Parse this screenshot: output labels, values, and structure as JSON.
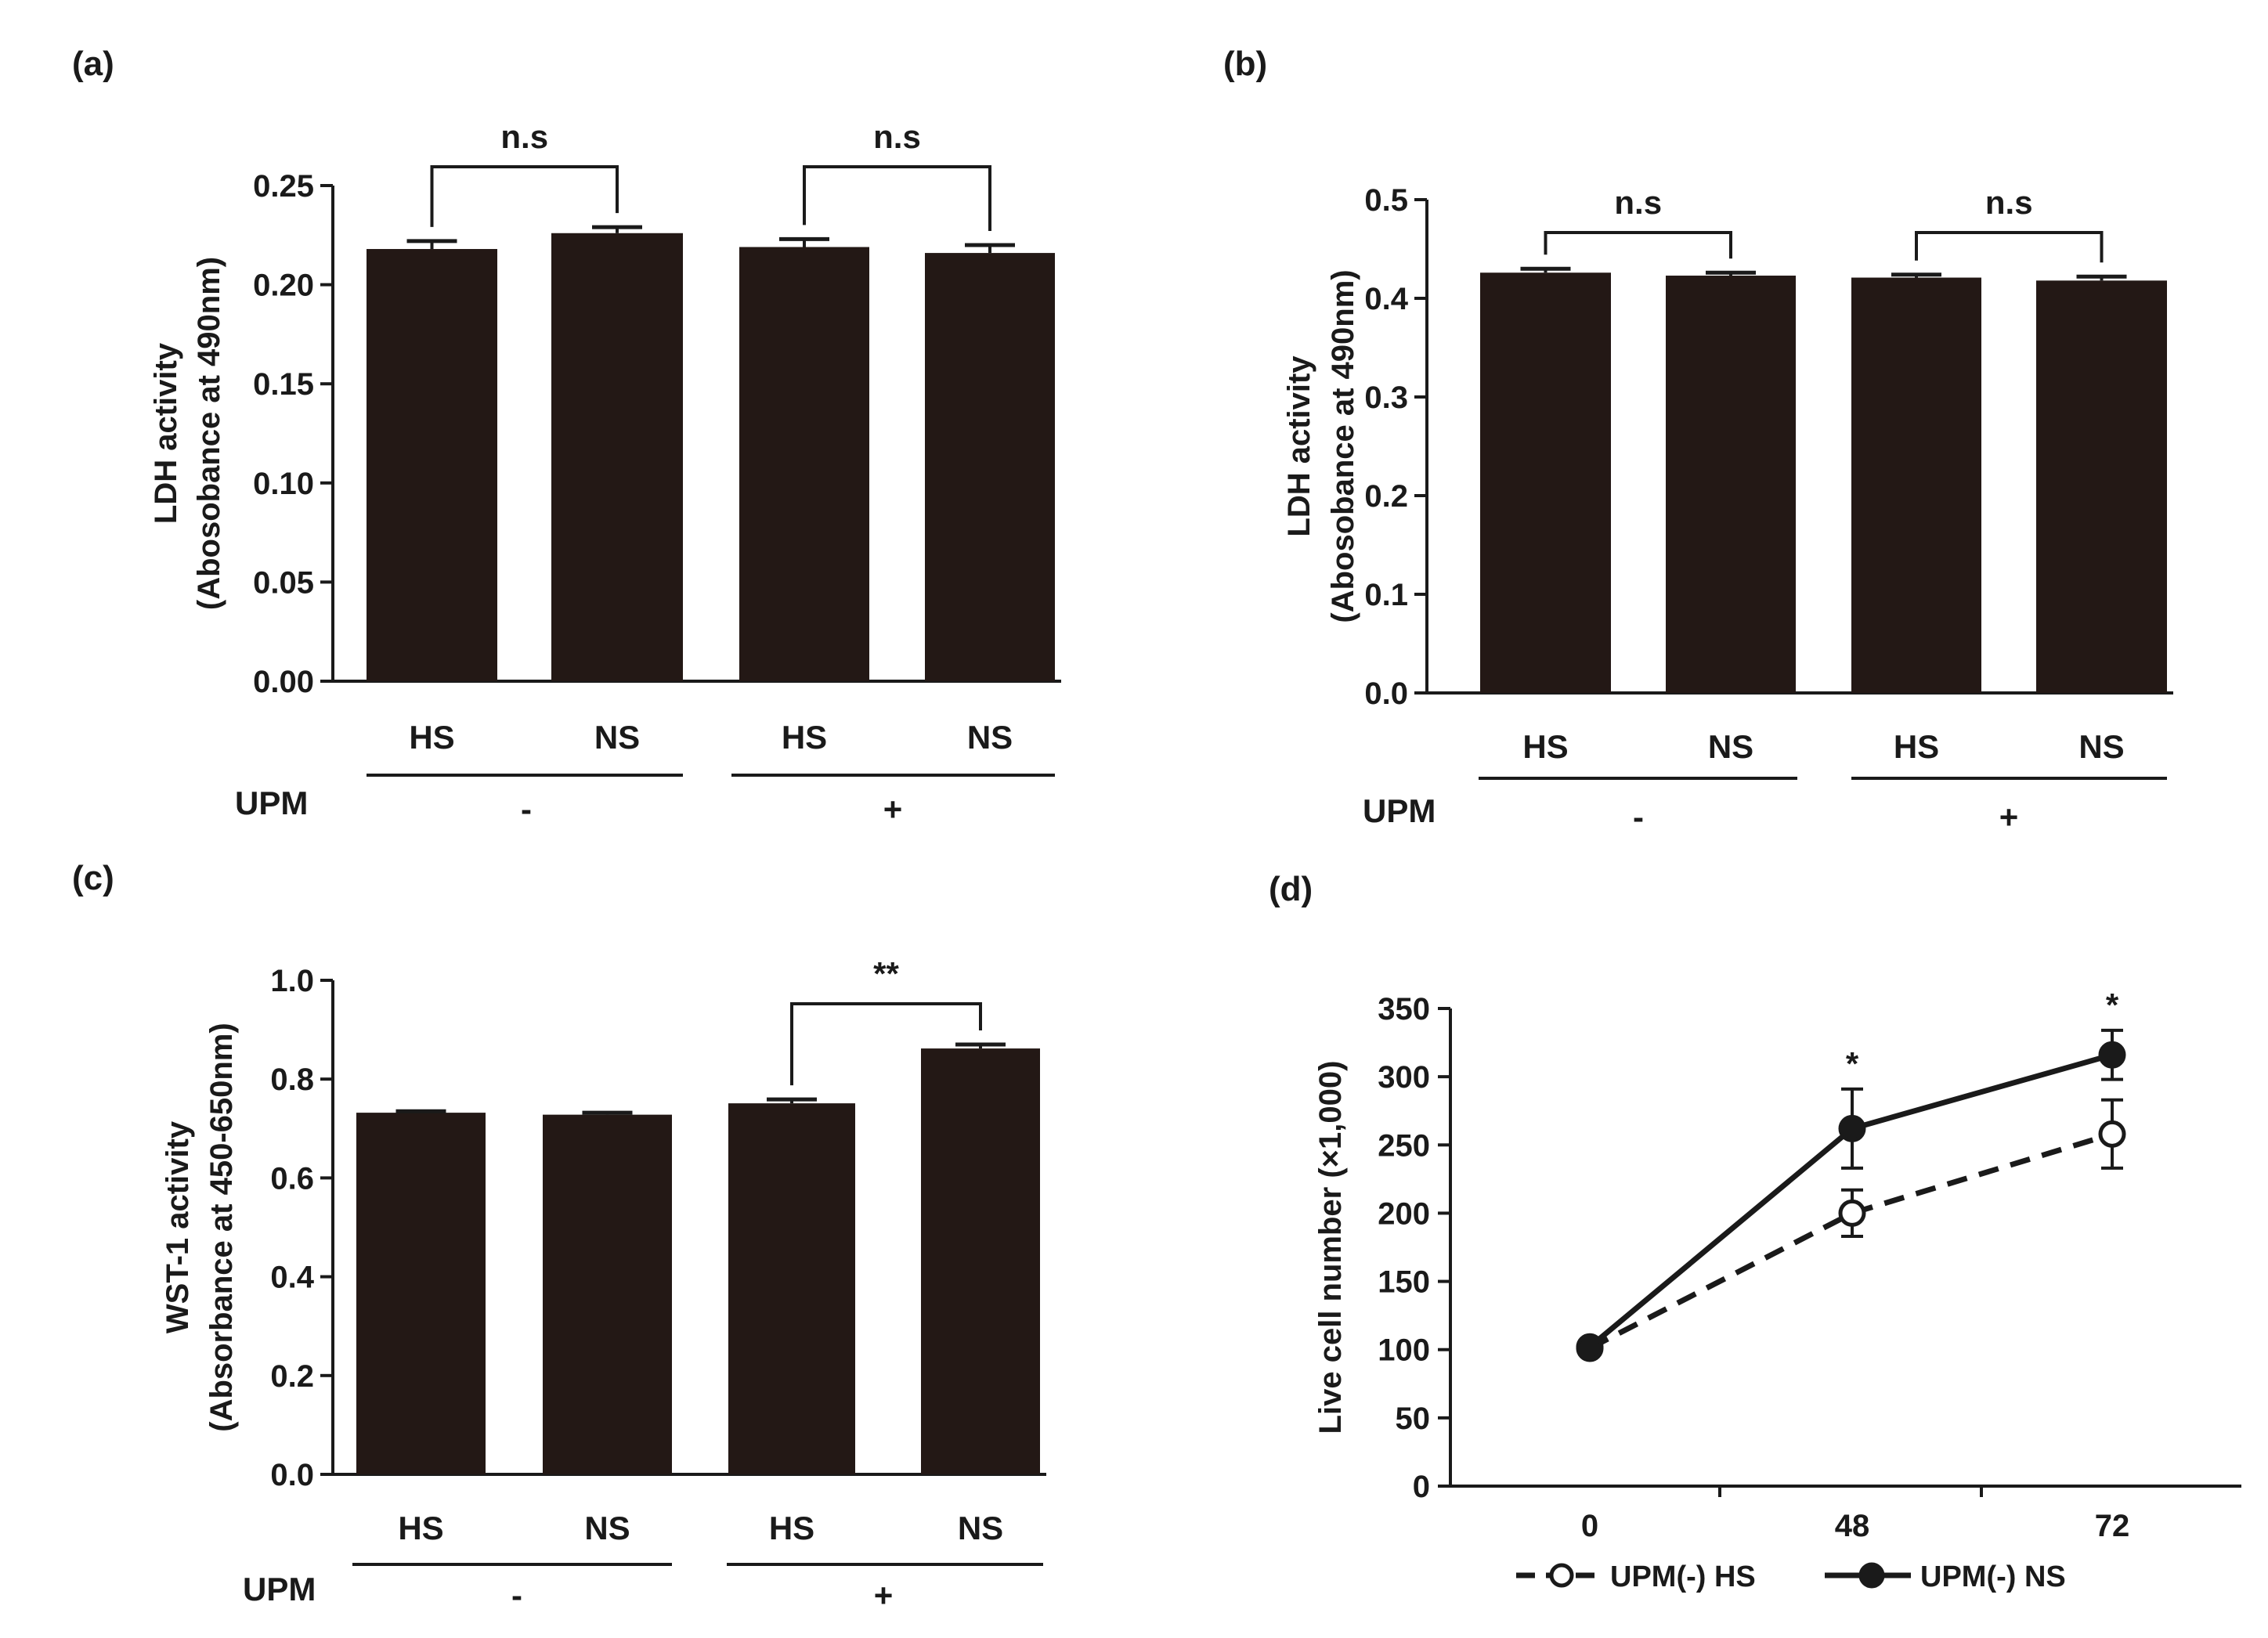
{
  "colors": {
    "bar": "#231815",
    "axis": "#1a1a1a",
    "open_marker": "#ffffff"
  },
  "chart_data": [
    {
      "id": "a",
      "panel_label": "(a)",
      "type": "bar",
      "ylabel": [
        "LDH activity",
        "(Abosobance at 490nm)"
      ],
      "ylim": [
        0,
        0.25
      ],
      "yticks": [
        "0.00",
        "0.05",
        "0.10",
        "0.15",
        "0.20",
        "0.25"
      ],
      "categories": [
        "HS",
        "NS",
        "HS",
        "NS"
      ],
      "values": [
        0.218,
        0.226,
        0.219,
        0.216
      ],
      "errors": [
        0.004,
        0.003,
        0.004,
        0.004
      ],
      "group_label": "UPM",
      "groups": [
        "-",
        "+"
      ],
      "significance": [
        {
          "between": [
            0,
            1
          ],
          "text": "n.s"
        },
        {
          "between": [
            2,
            3
          ],
          "text": "n.s"
        }
      ]
    },
    {
      "id": "b",
      "panel_label": "(b)",
      "type": "bar",
      "ylabel": [
        "LDH activity",
        "(Abosobance at 490nm)"
      ],
      "ylim": [
        0,
        0.5
      ],
      "yticks": [
        "0.0",
        "0.1",
        "0.2",
        "0.3",
        "0.4",
        "0.5"
      ],
      "categories": [
        "HS",
        "NS",
        "HS",
        "NS"
      ],
      "values": [
        0.426,
        0.423,
        0.421,
        0.418
      ],
      "errors": [
        0.004,
        0.003,
        0.003,
        0.004
      ],
      "group_label": "UPM",
      "groups": [
        "-",
        "+"
      ],
      "significance": [
        {
          "between": [
            0,
            1
          ],
          "text": "n.s"
        },
        {
          "between": [
            2,
            3
          ],
          "text": "n.s"
        }
      ]
    },
    {
      "id": "c",
      "panel_label": "(c)",
      "type": "bar",
      "ylabel": [
        "WST-1 activity",
        "(Absorbance at 450-650nm)"
      ],
      "ylim": [
        0,
        1.0
      ],
      "yticks": [
        "0.0",
        "0.2",
        "0.4",
        "0.6",
        "0.8",
        "1.0"
      ],
      "categories": [
        "HS",
        "NS",
        "HS",
        "NS"
      ],
      "values": [
        0.732,
        0.728,
        0.751,
        0.862
      ],
      "errors": [
        0.003,
        0.004,
        0.008,
        0.008
      ],
      "group_label": "UPM",
      "groups": [
        "-",
        "+"
      ],
      "significance": [
        {
          "between": [
            2,
            3
          ],
          "text": "**"
        }
      ]
    },
    {
      "id": "d",
      "panel_label": "(d)",
      "type": "line",
      "ylabel": [
        "Live cell number (×1,000)"
      ],
      "ylim": [
        0,
        350
      ],
      "yticks": [
        "0",
        "50",
        "100",
        "150",
        "200",
        "250",
        "300",
        "350"
      ],
      "x": [
        "0",
        "48",
        "72"
      ],
      "series": [
        {
          "name": "UPM(-) HS",
          "values": [
            101,
            200,
            258
          ],
          "errors": [
            3,
            17,
            25
          ],
          "marker": "open",
          "line": "dashed"
        },
        {
          "name": "UPM(-) NS",
          "values": [
            102,
            262,
            316
          ],
          "errors": [
            3,
            29,
            18
          ],
          "marker": "filled",
          "line": "solid"
        }
      ],
      "annotations": [
        {
          "x_index": 1,
          "text": "*"
        },
        {
          "x_index": 2,
          "text": "*"
        }
      ]
    }
  ]
}
